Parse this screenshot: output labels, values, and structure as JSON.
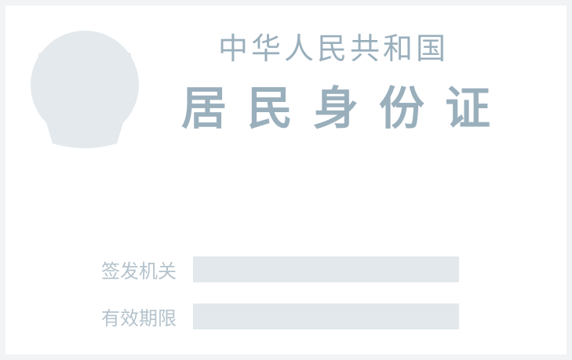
{
  "card": {
    "title_top": "中华人民共和国",
    "title_main": "居民身份证"
  },
  "fields": [
    {
      "label": "签发机关",
      "value": ""
    },
    {
      "label": "有效期限",
      "value": ""
    }
  ],
  "icons": {
    "emblem": "national-emblem-icon"
  },
  "colors": {
    "title": "#9aafbc",
    "label": "#b4c3cc",
    "field_bg": "#e2e8ec",
    "emblem": "#e3e9ed"
  }
}
